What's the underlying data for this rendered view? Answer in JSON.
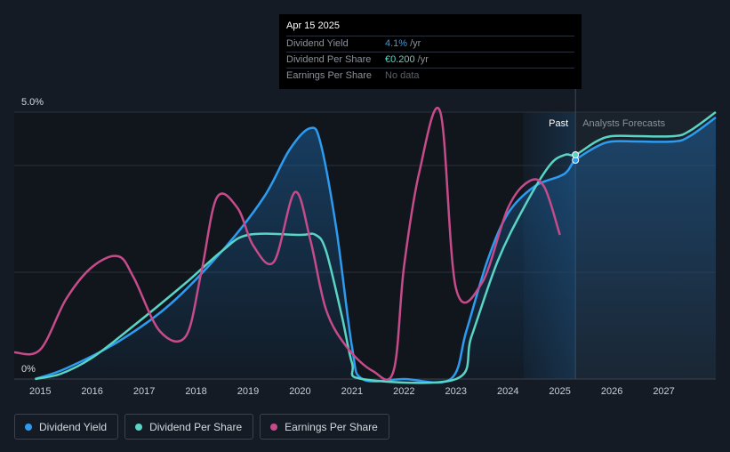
{
  "tooltip": {
    "date": "Apr 15 2025",
    "rows": [
      {
        "label": "Dividend Yield",
        "value": "4.1%",
        "unit": "/yr"
      },
      {
        "label": "Dividend Per Share",
        "value": "€0.200",
        "unit": "/yr"
      },
      {
        "label": "Earnings Per Share",
        "value": "No data",
        "unit": ""
      }
    ]
  },
  "legend": [
    {
      "label": "Dividend Yield",
      "color": "#2d9cf0"
    },
    {
      "label": "Dividend Per Share",
      "color": "#5ad4c4"
    },
    {
      "label": "Earnings Per Share",
      "color": "#c64b8a"
    }
  ],
  "chart_data": {
    "type": "line",
    "title": "",
    "xlabel": "",
    "ylabel": "",
    "y_tick_labels": [
      "5.0%",
      "0%"
    ],
    "ylim": [
      0,
      5.0
    ],
    "xlim": [
      2014.5,
      2028.0
    ],
    "x_tick_labels": [
      "2015",
      "2016",
      "2017",
      "2018",
      "2019",
      "2020",
      "2021",
      "2022",
      "2023",
      "2024",
      "2025",
      "2026",
      "2027"
    ],
    "past_label": "Past",
    "forecast_label": "Analysts Forecasts",
    "past_region_start": 2024.3,
    "forecast_start": 2025.3,
    "series": [
      {
        "name": "Dividend Yield",
        "color": "#2d9cf0",
        "area": true,
        "points": [
          [
            2014.9,
            0
          ],
          [
            2015.5,
            0.2
          ],
          [
            2016.5,
            0.7
          ],
          [
            2017.5,
            1.4
          ],
          [
            2018.5,
            2.4
          ],
          [
            2019.3,
            3.4
          ],
          [
            2019.8,
            4.3
          ],
          [
            2020.2,
            4.7
          ],
          [
            2020.4,
            4.4
          ],
          [
            2020.7,
            2.8
          ],
          [
            2021.0,
            0.6
          ],
          [
            2021.2,
            0
          ],
          [
            2022.0,
            0
          ],
          [
            2022.9,
            0
          ],
          [
            2023.2,
            0.9
          ],
          [
            2023.6,
            2.2
          ],
          [
            2024.0,
            3.1
          ],
          [
            2024.5,
            3.6
          ],
          [
            2025.0,
            3.8
          ],
          [
            2025.15,
            3.9
          ],
          [
            2025.3,
            4.1
          ],
          [
            2025.7,
            4.35
          ],
          [
            2026.0,
            4.45
          ],
          [
            2026.5,
            4.45
          ],
          [
            2027.2,
            4.45
          ],
          [
            2027.5,
            4.55
          ],
          [
            2028.0,
            4.9
          ]
        ]
      },
      {
        "name": "Dividend Per Share",
        "color": "#5ad4c4",
        "area": false,
        "points": [
          [
            2014.9,
            0
          ],
          [
            2015.4,
            0.1
          ],
          [
            2016.0,
            0.4
          ],
          [
            2016.8,
            1.0
          ],
          [
            2017.8,
            1.8
          ],
          [
            2018.5,
            2.4
          ],
          [
            2019.0,
            2.7
          ],
          [
            2020.0,
            2.7
          ],
          [
            2020.3,
            2.7
          ],
          [
            2020.5,
            2.4
          ],
          [
            2020.8,
            1.2
          ],
          [
            2021.0,
            0.3
          ],
          [
            2021.2,
            0
          ],
          [
            2023.0,
            0
          ],
          [
            2023.3,
            0.8
          ],
          [
            2023.8,
            2.2
          ],
          [
            2024.3,
            3.2
          ],
          [
            2024.8,
            4.0
          ],
          [
            2025.1,
            4.2
          ],
          [
            2025.3,
            4.2
          ],
          [
            2025.7,
            4.45
          ],
          [
            2026.0,
            4.55
          ],
          [
            2026.5,
            4.55
          ],
          [
            2027.2,
            4.55
          ],
          [
            2027.5,
            4.65
          ],
          [
            2028.0,
            5.0
          ]
        ]
      },
      {
        "name": "Earnings Per Share",
        "color": "#c64b8a",
        "area": false,
        "points": [
          [
            2014.5,
            0.5
          ],
          [
            2015.0,
            0.55
          ],
          [
            2015.5,
            1.5
          ],
          [
            2016.0,
            2.1
          ],
          [
            2016.5,
            2.3
          ],
          [
            2016.8,
            1.9
          ],
          [
            2017.3,
            0.9
          ],
          [
            2017.8,
            0.8
          ],
          [
            2018.1,
            2.0
          ],
          [
            2018.4,
            3.4
          ],
          [
            2018.8,
            3.2
          ],
          [
            2019.1,
            2.5
          ],
          [
            2019.5,
            2.2
          ],
          [
            2019.9,
            3.5
          ],
          [
            2020.2,
            2.6
          ],
          [
            2020.5,
            1.3
          ],
          [
            2020.9,
            0.6
          ],
          [
            2021.4,
            0.15
          ],
          [
            2021.8,
            0.15
          ],
          [
            2022.0,
            2.1
          ],
          [
            2022.3,
            3.9
          ],
          [
            2022.7,
            5.0
          ],
          [
            2023.0,
            1.7
          ],
          [
            2023.5,
            1.8
          ],
          [
            2024.0,
            3.2
          ],
          [
            2024.4,
            3.7
          ],
          [
            2024.7,
            3.6
          ],
          [
            2025.0,
            2.7
          ]
        ]
      }
    ]
  }
}
